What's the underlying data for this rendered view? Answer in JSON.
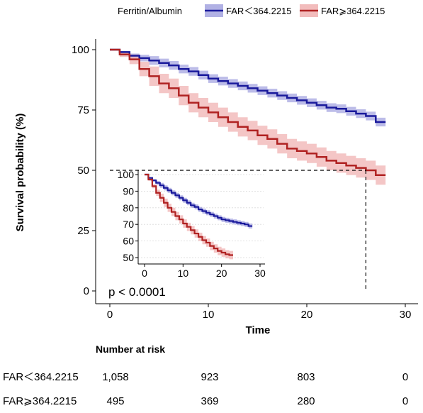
{
  "colors": {
    "low": "#1a1a9c",
    "low_band": "#9090d8",
    "high": "#b02222",
    "high_band": "#eda0a0"
  },
  "legend": {
    "title": "Ferritin/Albumin",
    "items": [
      "FAR＜364.2215",
      "FAR⩾364.2215"
    ]
  },
  "p_value": "p < 0.0001",
  "risk_table": {
    "title": "Number at risk",
    "rows": [
      {
        "label": "FAR＜364.2215",
        "values": [
          "1,058",
          "923",
          "803",
          "0"
        ]
      },
      {
        "label": "FAR⩾364.2215",
        "values": [
          "495",
          "369",
          "280",
          "0"
        ]
      }
    ]
  },
  "chart_data": [
    {
      "type": "line",
      "subtype": "kaplan-meier step",
      "title": "",
      "xlabel": "Time",
      "ylabel": "Survival probability (%)",
      "xlim": [
        0,
        30
      ],
      "ylim": [
        0,
        100
      ],
      "x_ticks": [
        0,
        10,
        20,
        30
      ],
      "y_ticks": [
        0,
        25,
        50,
        75,
        100
      ],
      "grid": false,
      "legend_position": "top",
      "median_marker": {
        "x": 26,
        "y": 50
      },
      "series": [
        {
          "name": "FAR＜364.2215",
          "x": [
            0,
            1,
            2,
            3,
            4,
            5,
            6,
            7,
            8,
            9,
            10,
            11,
            12,
            13,
            14,
            15,
            16,
            17,
            18,
            19,
            20,
            21,
            22,
            23,
            24,
            25,
            26,
            27,
            28
          ],
          "y": [
            100,
            99,
            97.5,
            96.5,
            95.5,
            94.5,
            93.5,
            92,
            91,
            89.5,
            88,
            87,
            86,
            85,
            84,
            83,
            82,
            81,
            80,
            79,
            78,
            77,
            76,
            75.5,
            74.5,
            73.5,
            72.5,
            70,
            70
          ],
          "ci_halfwidth": 1.8
        },
        {
          "name": "FAR⩾364.2215",
          "x": [
            0,
            1,
            2,
            3,
            4,
            5,
            6,
            7,
            8,
            9,
            10,
            11,
            12,
            13,
            14,
            15,
            16,
            17,
            18,
            19,
            20,
            21,
            22,
            23,
            24,
            25,
            26,
            27,
            28
          ],
          "y": [
            100,
            98,
            96,
            92,
            89,
            86,
            84,
            81,
            78,
            76,
            74,
            72,
            70,
            68,
            66.5,
            64.5,
            63,
            61,
            59,
            58,
            57,
            55.5,
            54,
            53,
            52,
            51,
            50,
            48,
            48
          ],
          "ci_halfwidth": 4
        }
      ]
    },
    {
      "type": "line",
      "subtype": "inset kaplan-meier",
      "title": "",
      "xlim": [
        0,
        30
      ],
      "ylim": [
        50,
        100
      ],
      "x_ticks": [
        0,
        10,
        20,
        30
      ],
      "y_ticks": [
        50,
        60,
        70,
        80,
        90,
        100
      ],
      "grid": true,
      "series": [
        {
          "name": "FAR＜364.2215",
          "x": [
            0,
            1,
            2,
            3,
            4,
            5,
            6,
            7,
            8,
            9,
            10,
            11,
            12,
            13,
            14,
            15,
            16,
            17,
            18,
            19,
            20,
            21,
            22,
            23,
            24,
            25,
            26,
            27,
            28
          ],
          "y": [
            100,
            98,
            96.5,
            95,
            93.5,
            92,
            90.5,
            89,
            87.5,
            86,
            84.5,
            83,
            81.5,
            80.5,
            79,
            78,
            77,
            76,
            75,
            74,
            73,
            72.5,
            72,
            71.5,
            71,
            70.5,
            70,
            69,
            69
          ],
          "ci_halfwidth": 1.5
        },
        {
          "name": "FAR⩾364.2215",
          "x": [
            0,
            1,
            2,
            3,
            4,
            5,
            6,
            7,
            8,
            9,
            10,
            11,
            12,
            13,
            14,
            15,
            16,
            17,
            18,
            19,
            20,
            21,
            22,
            23
          ],
          "y": [
            100,
            97,
            93,
            89,
            86,
            83,
            80,
            77.5,
            75,
            73,
            70.5,
            68.5,
            66.5,
            64.5,
            62.5,
            60.5,
            59,
            57,
            55.5,
            54,
            53,
            52,
            51.5,
            51.5
          ],
          "ci_halfwidth": 2.5
        }
      ]
    }
  ]
}
